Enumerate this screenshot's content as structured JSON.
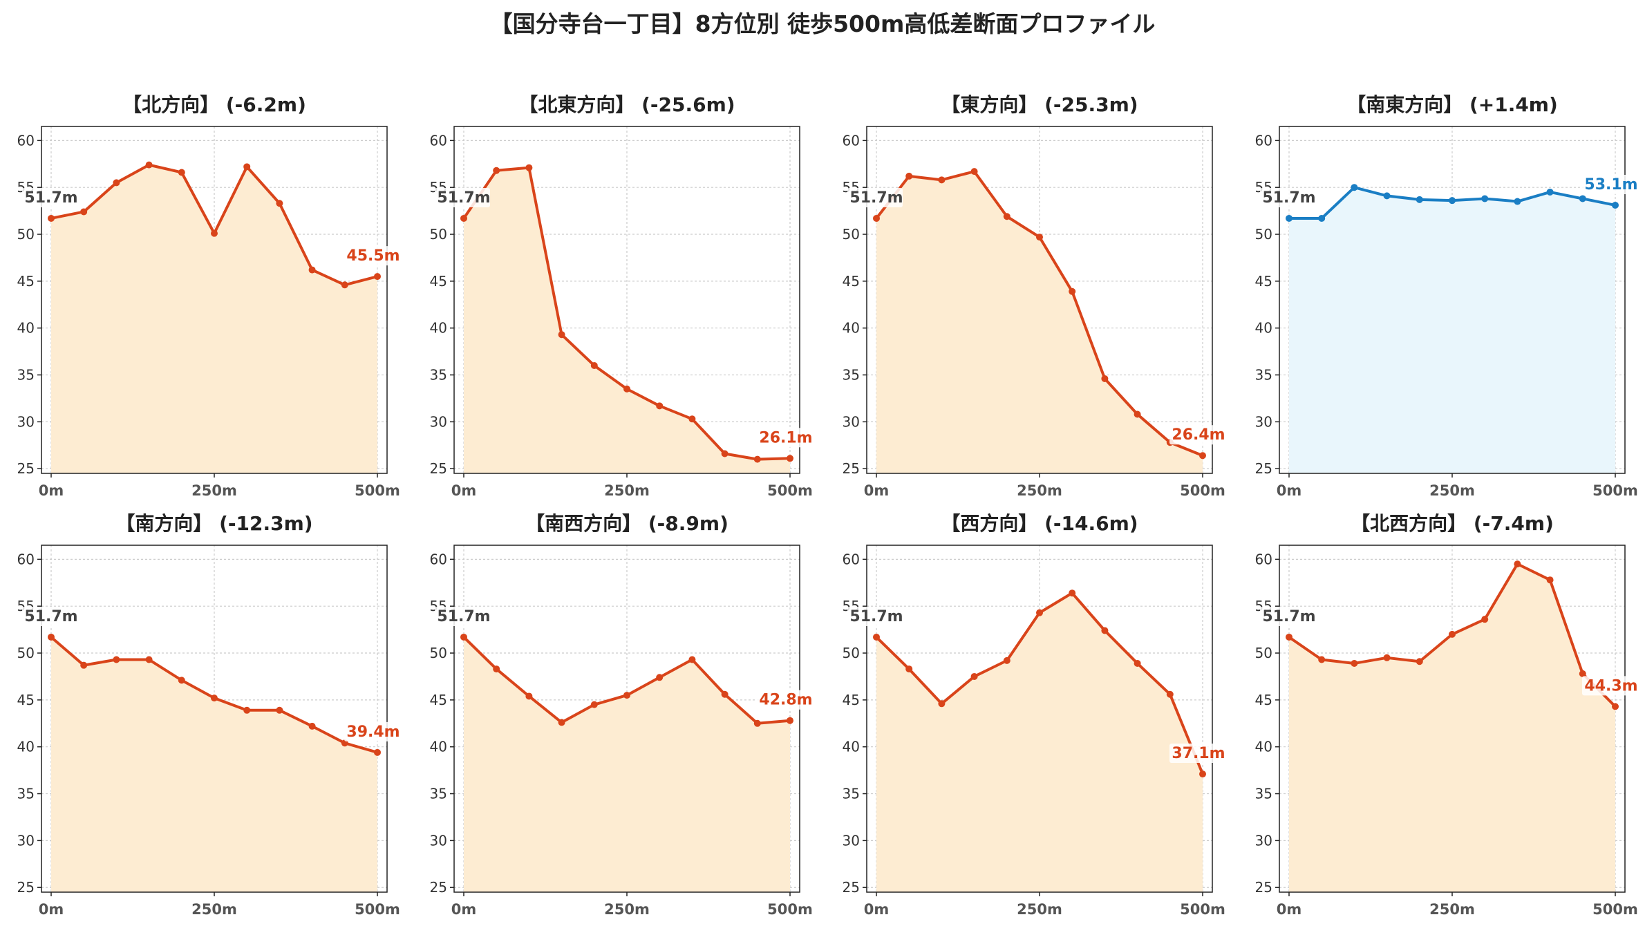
{
  "title": "【国分寺台一丁目】8方位別 徒歩500m高低差断面プロファイル",
  "colors": {
    "down_line": "#d9441a",
    "down_fill": "#fdecd2",
    "up_line": "#1a7ec4",
    "up_fill": "#e9f6fc",
    "start_label": "#444444"
  },
  "chart_data": [
    {
      "type": "area",
      "title": "【北方向】 (-6.2m)",
      "x": [
        0,
        50,
        100,
        150,
        200,
        250,
        300,
        350,
        400,
        450,
        500
      ],
      "y": [
        51.7,
        52.4,
        55.5,
        57.4,
        56.6,
        50.1,
        57.2,
        53.3,
        46.2,
        44.6,
        45.5
      ],
      "start_label": "51.7m",
      "end_label": "45.5m",
      "trend": "down",
      "ylim": [
        24.5,
        61.5
      ],
      "yticks": [
        "25",
        "30",
        "35",
        "40",
        "45",
        "50",
        "55",
        "60"
      ],
      "xticks": [
        "0m",
        "250m",
        "500m"
      ],
      "grid": true
    },
    {
      "type": "area",
      "title": "【北東方向】 (-25.6m)",
      "x": [
        0,
        50,
        100,
        150,
        200,
        250,
        300,
        350,
        400,
        450,
        500
      ],
      "y": [
        51.7,
        56.8,
        57.1,
        39.3,
        36.0,
        33.5,
        31.7,
        30.3,
        26.6,
        26.0,
        26.1
      ],
      "start_label": "51.7m",
      "end_label": "26.1m",
      "trend": "down",
      "ylim": [
        24.5,
        61.5
      ],
      "yticks": [
        "25",
        "30",
        "35",
        "40",
        "45",
        "50",
        "55",
        "60"
      ],
      "xticks": [
        "0m",
        "250m",
        "500m"
      ],
      "grid": true
    },
    {
      "type": "area",
      "title": "【東方向】 (-25.3m)",
      "x": [
        0,
        50,
        100,
        150,
        200,
        250,
        300,
        350,
        400,
        450,
        500
      ],
      "y": [
        51.7,
        56.2,
        55.8,
        56.7,
        51.9,
        49.7,
        43.9,
        34.6,
        30.8,
        27.8,
        26.4
      ],
      "start_label": "51.7m",
      "end_label": "26.4m",
      "trend": "down",
      "ylim": [
        24.5,
        61.5
      ],
      "yticks": [
        "25",
        "30",
        "35",
        "40",
        "45",
        "50",
        "55",
        "60"
      ],
      "xticks": [
        "0m",
        "250m",
        "500m"
      ],
      "grid": true
    },
    {
      "type": "area",
      "title": "【南東方向】 (+1.4m)",
      "x": [
        0,
        50,
        100,
        150,
        200,
        250,
        300,
        350,
        400,
        450,
        500
      ],
      "y": [
        51.7,
        51.7,
        55.0,
        54.1,
        53.7,
        53.6,
        53.8,
        53.5,
        54.5,
        53.8,
        53.1
      ],
      "start_label": "51.7m",
      "end_label": "53.1m",
      "trend": "up",
      "ylim": [
        24.5,
        61.5
      ],
      "yticks": [
        "25",
        "30",
        "35",
        "40",
        "45",
        "50",
        "55",
        "60"
      ],
      "xticks": [
        "0m",
        "250m",
        "500m"
      ],
      "grid": true
    },
    {
      "type": "area",
      "title": "【南方向】 (-12.3m)",
      "x": [
        0,
        50,
        100,
        150,
        200,
        250,
        300,
        350,
        400,
        450,
        500
      ],
      "y": [
        51.7,
        48.7,
        49.3,
        49.3,
        47.1,
        45.2,
        43.9,
        43.9,
        42.2,
        40.4,
        39.4
      ],
      "start_label": "51.7m",
      "end_label": "39.4m",
      "trend": "down",
      "ylim": [
        24.5,
        61.5
      ],
      "yticks": [
        "25",
        "30",
        "35",
        "40",
        "45",
        "50",
        "55",
        "60"
      ],
      "xticks": [
        "0m",
        "250m",
        "500m"
      ],
      "grid": true
    },
    {
      "type": "area",
      "title": "【南西方向】 (-8.9m)",
      "x": [
        0,
        50,
        100,
        150,
        200,
        250,
        300,
        350,
        400,
        450,
        500
      ],
      "y": [
        51.7,
        48.3,
        45.4,
        42.6,
        44.5,
        45.5,
        47.4,
        49.3,
        45.6,
        42.5,
        42.8
      ],
      "start_label": "51.7m",
      "end_label": "42.8m",
      "trend": "down",
      "ylim": [
        24.5,
        61.5
      ],
      "yticks": [
        "25",
        "30",
        "35",
        "40",
        "45",
        "50",
        "55",
        "60"
      ],
      "xticks": [
        "0m",
        "250m",
        "500m"
      ],
      "grid": true
    },
    {
      "type": "area",
      "title": "【西方向】 (-14.6m)",
      "x": [
        0,
        50,
        100,
        150,
        200,
        250,
        300,
        350,
        400,
        450,
        500
      ],
      "y": [
        51.7,
        48.3,
        44.6,
        47.5,
        49.2,
        54.3,
        56.4,
        52.4,
        48.9,
        45.6,
        37.1
      ],
      "start_label": "51.7m",
      "end_label": "37.1m",
      "trend": "down",
      "ylim": [
        24.5,
        61.5
      ],
      "yticks": [
        "25",
        "30",
        "35",
        "40",
        "45",
        "50",
        "55",
        "60"
      ],
      "xticks": [
        "0m",
        "250m",
        "500m"
      ],
      "grid": true
    },
    {
      "type": "area",
      "title": "【北西方向】 (-7.4m)",
      "x": [
        0,
        50,
        100,
        150,
        200,
        250,
        300,
        350,
        400,
        450,
        500
      ],
      "y": [
        51.7,
        49.3,
        48.9,
        49.5,
        49.1,
        52.0,
        53.6,
        59.5,
        57.8,
        47.8,
        44.3
      ],
      "start_label": "51.7m",
      "end_label": "44.3m",
      "trend": "down",
      "ylim": [
        24.5,
        61.5
      ],
      "yticks": [
        "25",
        "30",
        "35",
        "40",
        "45",
        "50",
        "55",
        "60"
      ],
      "xticks": [
        "0m",
        "250m",
        "500m"
      ],
      "grid": true
    }
  ]
}
